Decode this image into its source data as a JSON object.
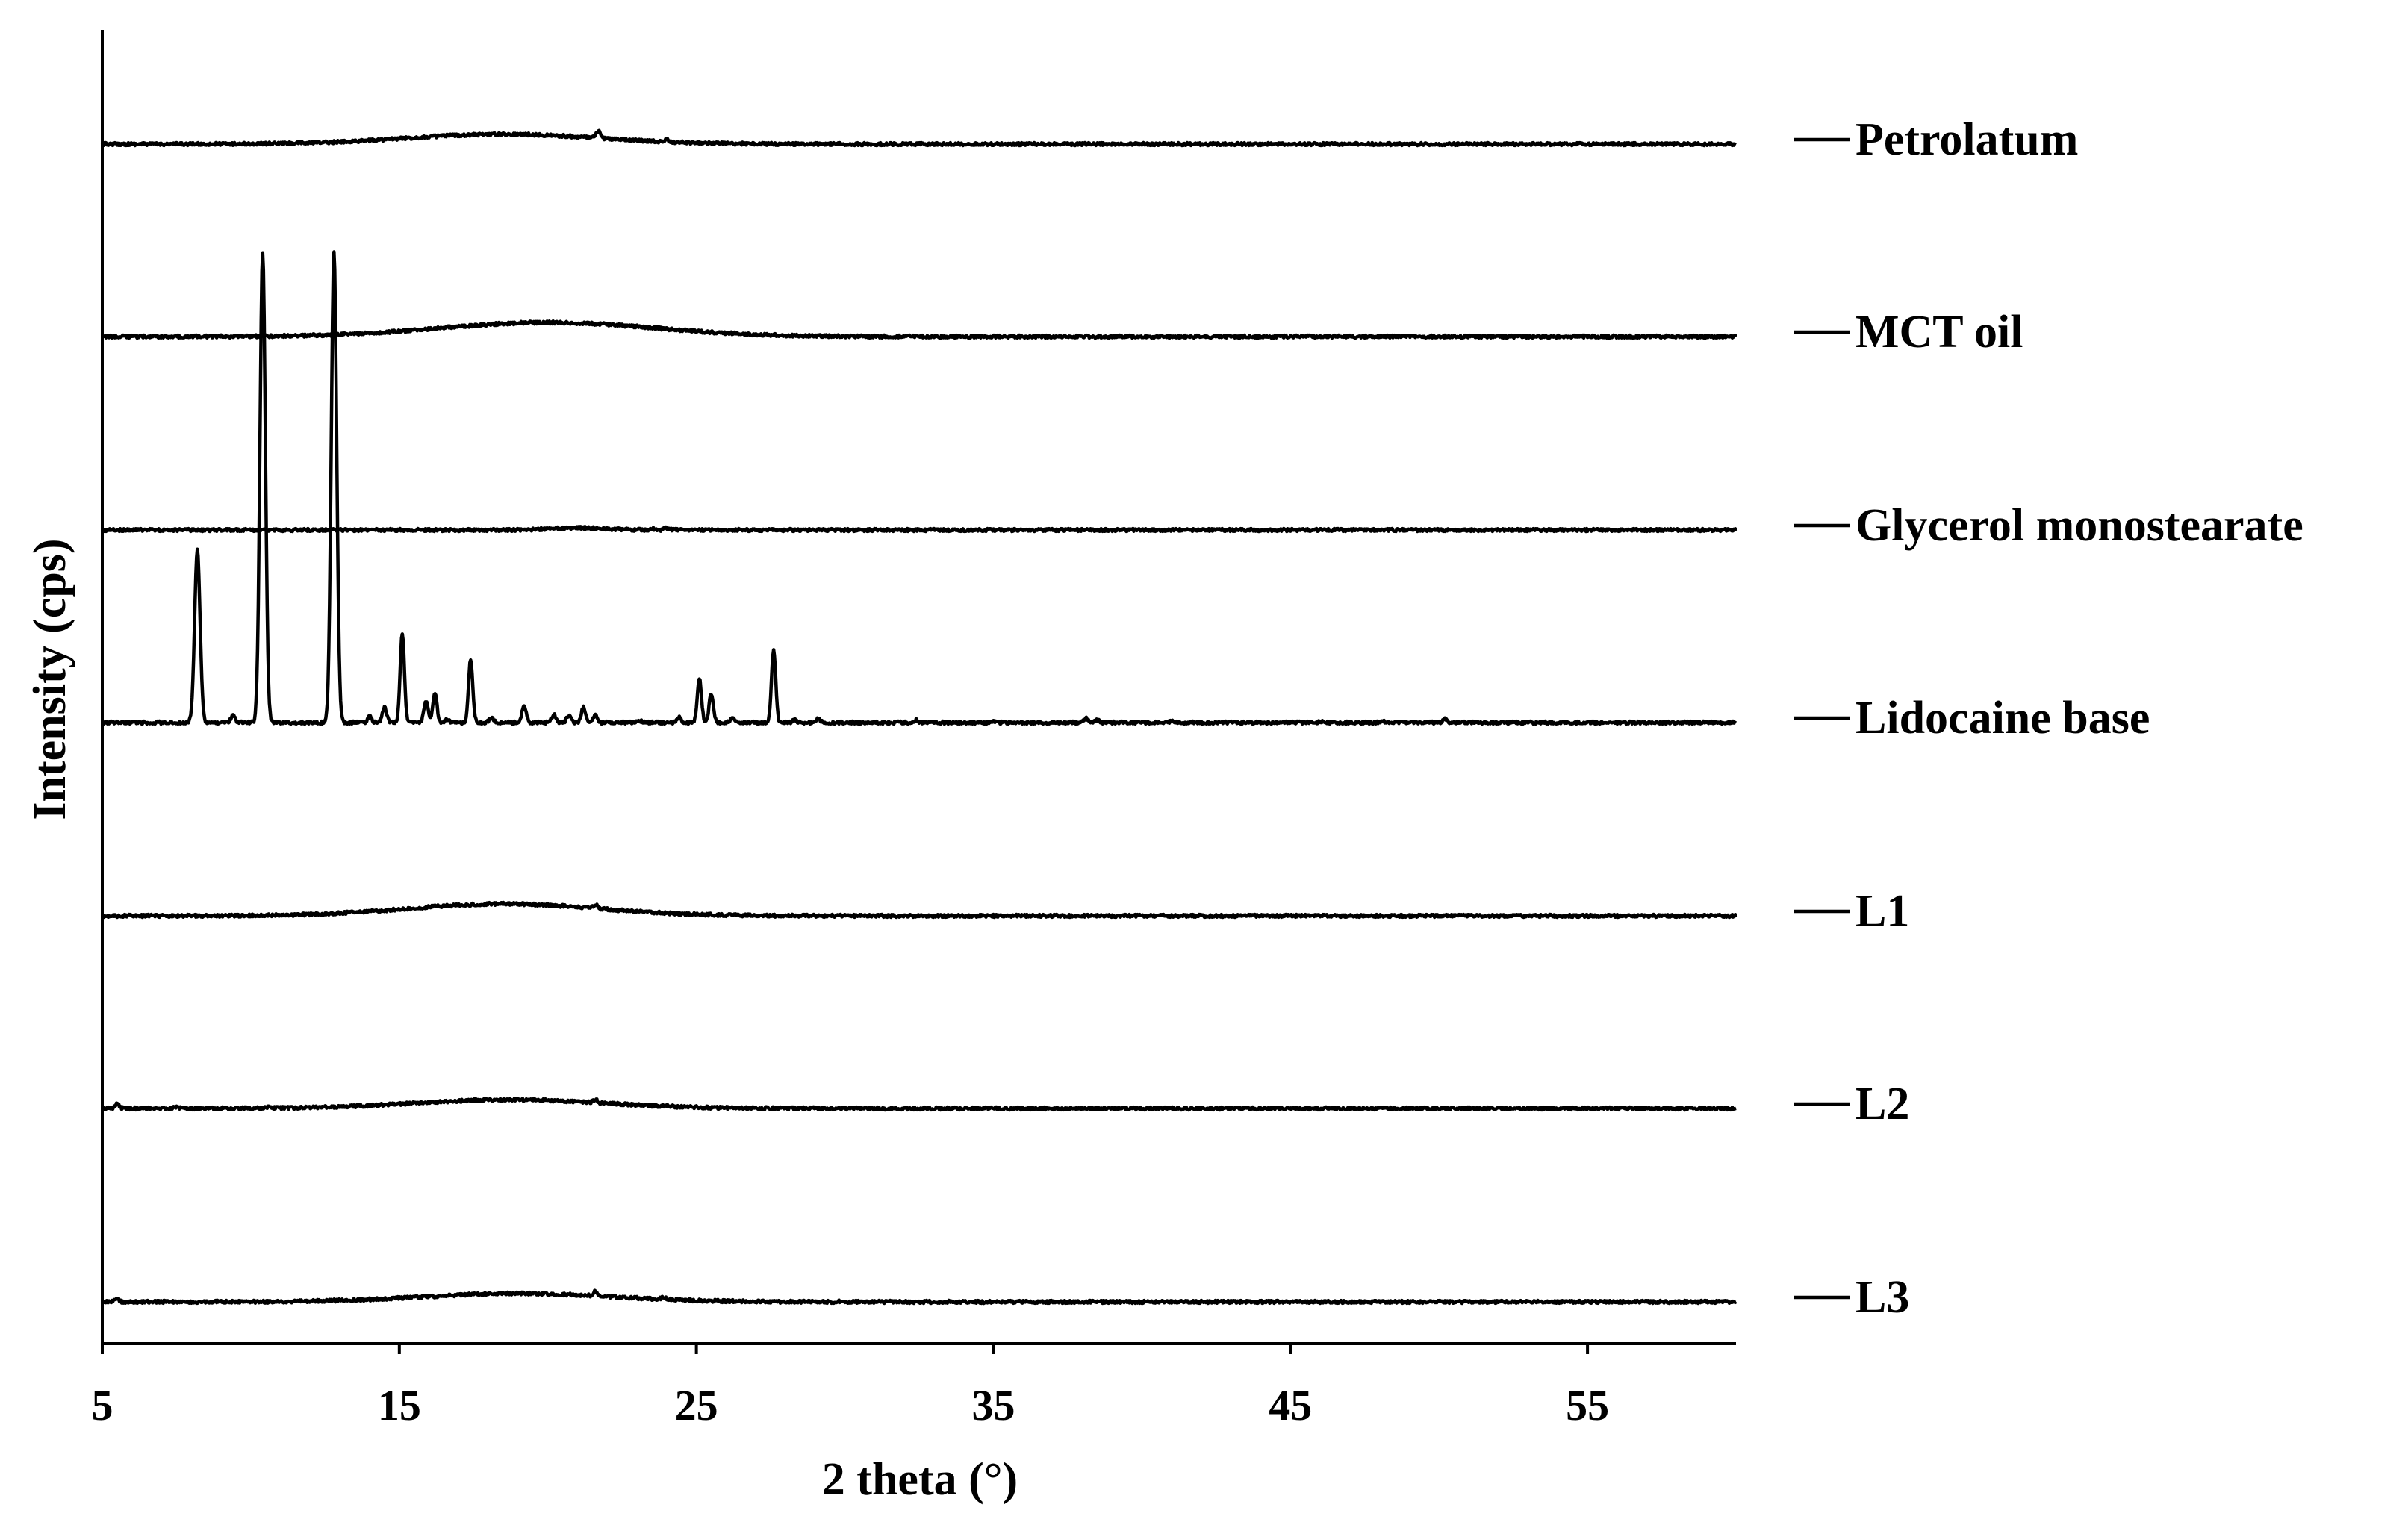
{
  "chart_data": {
    "type": "line",
    "xlabel": "2 theta (°)",
    "ylabel": "Intensity (cps)",
    "xlim": [
      5,
      60
    ],
    "xticks": [
      5,
      15,
      25,
      35,
      45,
      55
    ],
    "grid": false,
    "legend_placement": "right, one label beside each trace",
    "y_ticks_shown": false,
    "series": [
      {
        "name": "Petrolatum",
        "halo": {
          "center": 18.5,
          "width": 3.2,
          "height": 0.19
        },
        "peaks": [
          [
            21.7,
            0.13
          ],
          [
            24.0,
            0.04
          ]
        ]
      },
      {
        "name": "MCT oil",
        "halo": {
          "center": 20.0,
          "width": 3.6,
          "height": 0.27
        },
        "peaks": []
      },
      {
        "name": "Glycerol monostearate",
        "halo": {
          "center": 21.0,
          "width": 0.9,
          "height": 0.04
        },
        "peaks": [
          [
            23.5,
            0.03
          ],
          [
            24.0,
            0.04
          ],
          [
            24.5,
            0.03
          ]
        ]
      },
      {
        "name": "Lidocaine base",
        "halo": {
          "center": 0,
          "width": 1,
          "height": 0
        },
        "peaks": [
          [
            8.2,
            3.3
          ],
          [
            9.4,
            0.14
          ],
          [
            10.4,
            9.0
          ],
          [
            12.8,
            9.0
          ],
          [
            14.0,
            0.12
          ],
          [
            14.5,
            0.3
          ],
          [
            15.1,
            1.7
          ],
          [
            15.9,
            0.4
          ],
          [
            16.2,
            0.55
          ],
          [
            16.6,
            0.06
          ],
          [
            17.4,
            1.2
          ],
          [
            18.1,
            0.1
          ],
          [
            19.2,
            0.33
          ],
          [
            20.2,
            0.15
          ],
          [
            20.7,
            0.14
          ],
          [
            21.2,
            0.3
          ],
          [
            21.6,
            0.16
          ],
          [
            23.1,
            0.03
          ],
          [
            24.4,
            0.1
          ],
          [
            25.1,
            0.85
          ],
          [
            25.5,
            0.55
          ],
          [
            26.2,
            0.08
          ],
          [
            27.6,
            1.4
          ],
          [
            28.3,
            0.05
          ],
          [
            29.1,
            0.08
          ],
          [
            32.4,
            0.05
          ],
          [
            35.0,
            0.02
          ],
          [
            38.1,
            0.08
          ],
          [
            38.5,
            0.05
          ],
          [
            41.0,
            0.02
          ],
          [
            46.0,
            0.02
          ],
          [
            48.2,
            0.02
          ],
          [
            50.2,
            0.07
          ]
        ]
      },
      {
        "name": "L1",
        "halo": {
          "center": 18.5,
          "width": 3.2,
          "height": 0.23
        },
        "peaks": [
          [
            21.6,
            0.07
          ]
        ]
      },
      {
        "name": "L2",
        "halo": {
          "center": 18.7,
          "width": 3.2,
          "height": 0.17
        },
        "peaks": [
          [
            5.5,
            0.1
          ],
          [
            7.5,
            0.03
          ],
          [
            10.6,
            0.03
          ],
          [
            21.6,
            0.06
          ],
          [
            24.0,
            0.02
          ]
        ]
      },
      {
        "name": "L3",
        "halo": {
          "center": 19.0,
          "width": 3.2,
          "height": 0.16
        },
        "peaks": [
          [
            5.5,
            0.05
          ],
          [
            21.6,
            0.1
          ],
          [
            23.9,
            0.04
          ],
          [
            29.8,
            0.015
          ]
        ]
      }
    ]
  }
}
